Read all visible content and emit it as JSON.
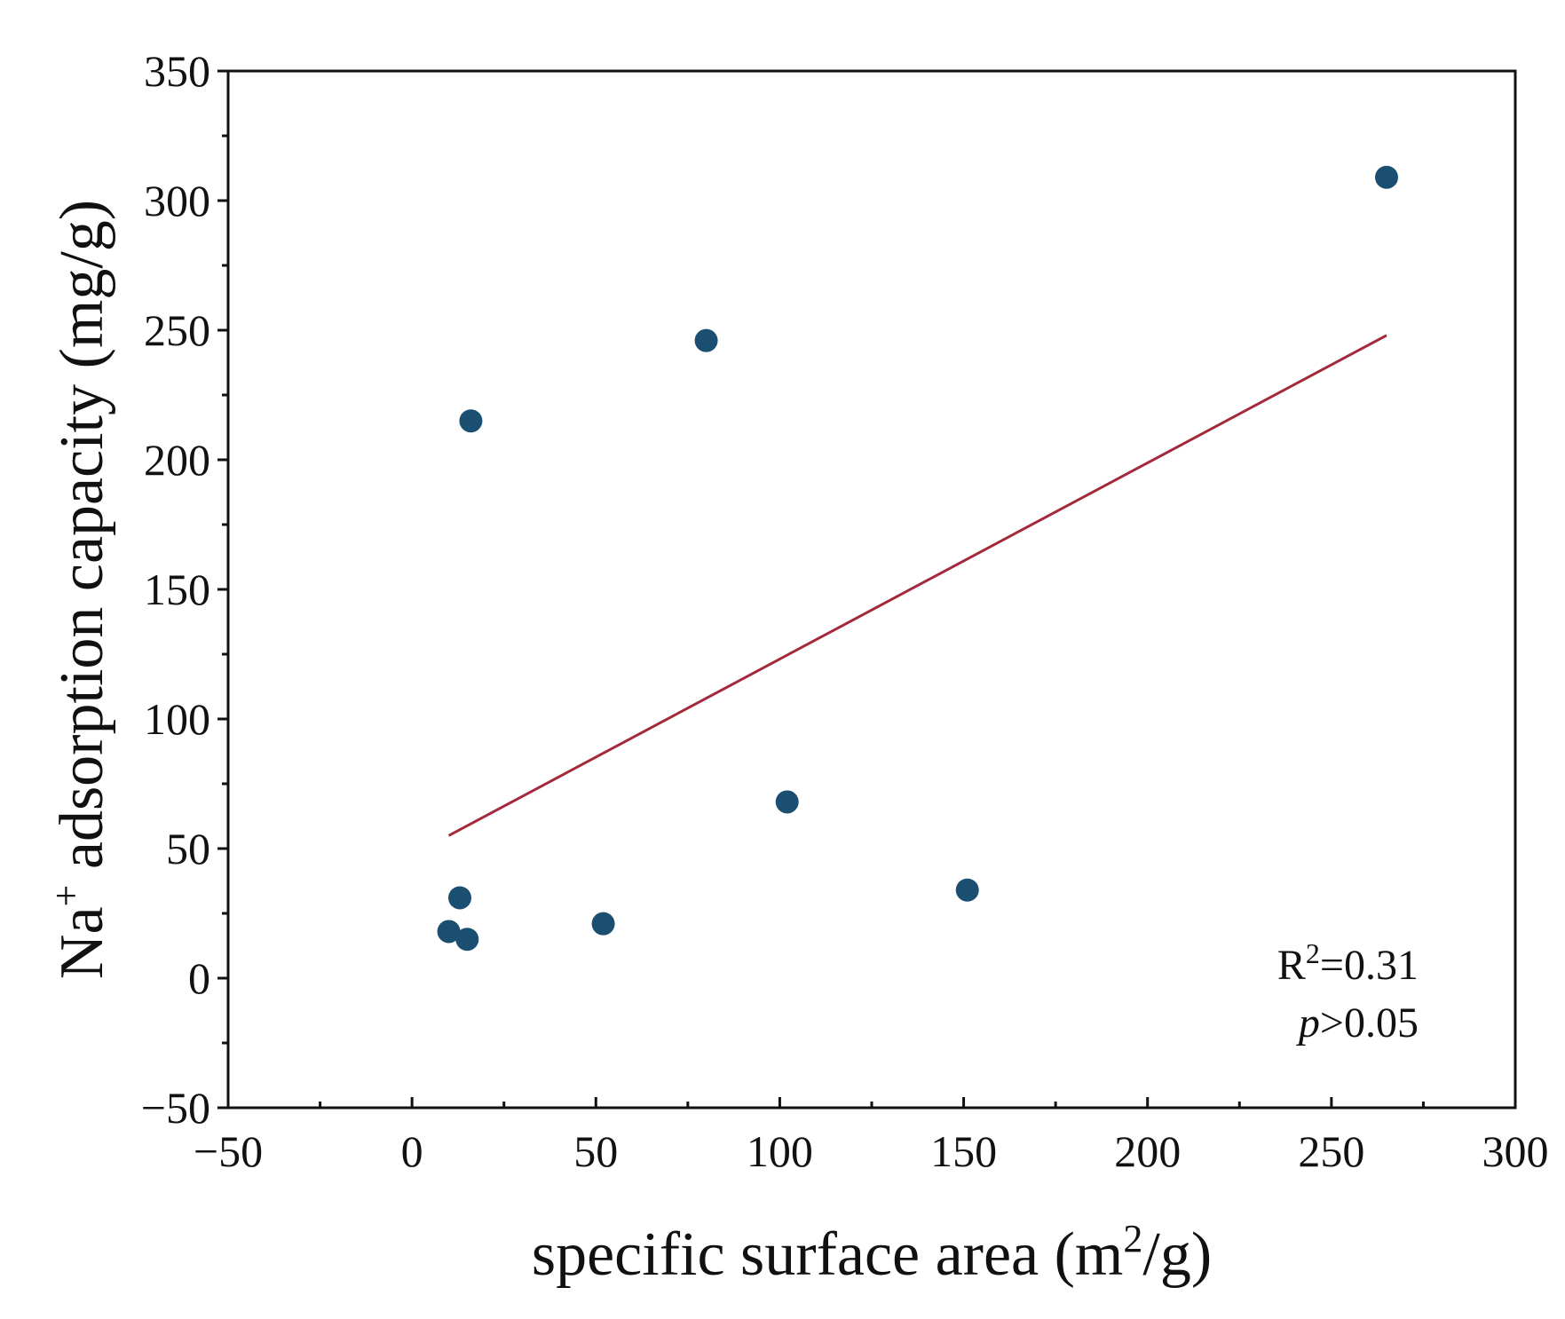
{
  "chart_data": {
    "type": "scatter",
    "title": "",
    "xlabel": {
      "pre": "specific surface area (m",
      "sup": "2",
      "post": "/g)"
    },
    "ylabel": {
      "pre": "Na",
      "sup": "+",
      "post": " adsorption capacity (mg/g)"
    },
    "xlim": [
      -50,
      300
    ],
    "ylim": [
      -50,
      350
    ],
    "xticks": [
      -50,
      0,
      50,
      100,
      150,
      200,
      250,
      300
    ],
    "yticks": [
      -50,
      0,
      50,
      100,
      150,
      200,
      250,
      300,
      350
    ],
    "xtick_labels": [
      "−50",
      "0",
      "50",
      "100",
      "150",
      "200",
      "250",
      "300"
    ],
    "ytick_labels": [
      "−50",
      "0",
      "50",
      "100",
      "150",
      "200",
      "250",
      "300",
      "350"
    ],
    "grid": false,
    "series": [
      {
        "name": "data",
        "marker": "circle",
        "color": "#1b4f72",
        "points": [
          {
            "x": 10,
            "y": 18
          },
          {
            "x": 13,
            "y": 31
          },
          {
            "x": 15,
            "y": 15
          },
          {
            "x": 16,
            "y": 215
          },
          {
            "x": 52,
            "y": 21
          },
          {
            "x": 80,
            "y": 246
          },
          {
            "x": 102,
            "y": 68
          },
          {
            "x": 151,
            "y": 34
          },
          {
            "x": 265,
            "y": 309
          }
        ]
      }
    ],
    "fit_line": {
      "color": "#a3293b",
      "x": [
        10,
        265
      ],
      "y": [
        55,
        248
      ]
    },
    "annotations": {
      "r2": {
        "pre": "R",
        "sup": "2",
        "post": "=0.31"
      },
      "p": {
        "var": "p",
        "post": ">0.05"
      }
    }
  }
}
